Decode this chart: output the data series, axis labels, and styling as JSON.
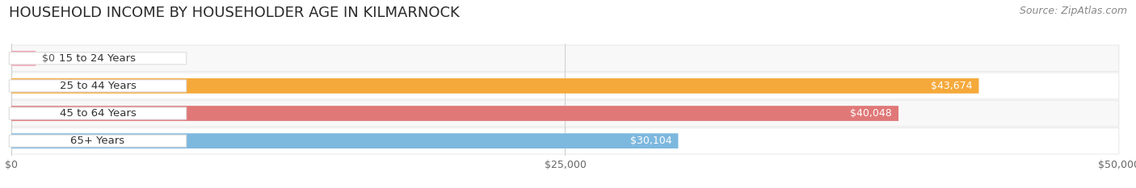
{
  "title": "HOUSEHOLD INCOME BY HOUSEHOLDER AGE IN KILMARNOCK",
  "source": "Source: ZipAtlas.com",
  "categories": [
    "15 to 24 Years",
    "25 to 44 Years",
    "45 to 64 Years",
    "65+ Years"
  ],
  "values": [
    0,
    43674,
    40048,
    30104
  ],
  "bar_colors": [
    "#f4a0b0",
    "#f5a93a",
    "#e07878",
    "#7db8df"
  ],
  "value_labels": [
    "$0",
    "$43,674",
    "$40,048",
    "$30,104"
  ],
  "xlim": [
    0,
    50000
  ],
  "xticks": [
    0,
    25000,
    50000
  ],
  "xticklabels": [
    "$0",
    "$25,000",
    "$50,000"
  ],
  "figure_bg": "#ffffff",
  "chart_bg": "#f5f5f5",
  "bar_bg_color": "#e8e8e8",
  "row_bg_color": "#ffffff",
  "title_fontsize": 13,
  "source_fontsize": 9,
  "label_fontsize": 9.5,
  "value_fontsize": 9,
  "bar_height": 0.55,
  "figsize": [
    14.06,
    2.33
  ],
  "dpi": 100
}
